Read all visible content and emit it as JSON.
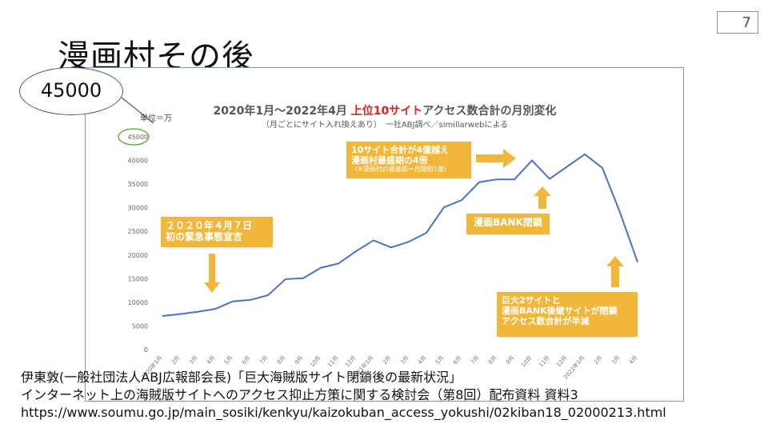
{
  "page_number": "7",
  "slide_title": "漫画村その後",
  "callout_value": "45000",
  "citation": [
    "伊東敦(一般社団法人ABJ広報部会長)「巨大海賊版サイト閉鎖後の最新状況」",
    "インターネット上の海賊版サイトへのアクセス抑止方策に関する検討会（第8回）配布資料 資料3",
    "https://www.soumu.go.jp/main_sosiki/kenkyu/kaizokuban_access_yokushi/02kiban18_02000213.html"
  ],
  "chart_data": {
    "type": "line",
    "title_parts": [
      "2020年1月～2022年4月 ",
      "上位10サイト",
      "アクセス数合計の月別変化"
    ],
    "subtitle": "（月ごとにサイト入れ換えあり）　一社ABJ調べ／simillarwebによる",
    "unit_label": "単位＝万",
    "x": [
      "2020年1月",
      "2月",
      "3月",
      "4月",
      "5月",
      "6月",
      "7月",
      "8月",
      "9月",
      "10月",
      "11月",
      "12月",
      "2021年1月",
      "2月",
      "3月",
      "4月",
      "5月",
      "6月",
      "7月",
      "8月",
      "9月",
      "10月",
      "11月",
      "12月",
      "2022年1月",
      "2月",
      "3月",
      "4月"
    ],
    "series": [
      {
        "values": [
          7100,
          7500,
          8000,
          8600,
          10200,
          10500,
          11500,
          14900,
          15100,
          17300,
          18200,
          20800,
          23100,
          21600,
          22800,
          24700,
          30100,
          31600,
          35400,
          36000,
          36000,
          40000,
          36100,
          38700,
          41300,
          38400,
          29000,
          18500
        ]
      }
    ],
    "ylim": [
      0,
      45000
    ],
    "yticks": [
      0,
      5000,
      10000,
      15000,
      20000,
      25000,
      30000,
      35000,
      40000,
      45000
    ],
    "grid": false,
    "line_color": "#4a72c2",
    "accent_color": "#f0b73a",
    "highlight_color": "#e02020",
    "annotations": {
      "emergency": {
        "lines": [
          "２０２０年４月７日",
          "初の緊急事態宣言"
        ]
      },
      "peak": {
        "lines": [
          "10サイト合計が4億越え",
          "漫画村最盛期の4倍",
          "（※漫画村の最盛期＝月間約1億）"
        ]
      },
      "bank": {
        "lines": [
          "漫画BANK閉鎖"
        ]
      },
      "closure": {
        "lines": [
          "巨大2サイトと",
          "漫画BANK後継サイトが閉鎖",
          "アクセス数合計が半減"
        ]
      }
    }
  }
}
